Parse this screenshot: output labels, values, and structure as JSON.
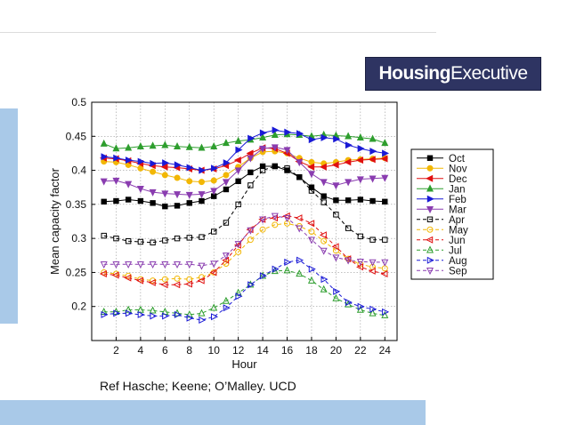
{
  "brand": {
    "logo_bold": "Housing",
    "logo_light": "Executive"
  },
  "caption": "Ref Hasche; Keene; O’Malley. UCD",
  "colors": {
    "accent_bar": "#a9c9e8",
    "logo_bg": "#2e3462"
  },
  "chart_data": {
    "type": "line",
    "title": "",
    "xlabel": "Hour",
    "ylabel": "Mean capacity factor",
    "xlim": [
      0,
      25
    ],
    "ylim": [
      0.15,
      0.5
    ],
    "xticks": [
      2,
      4,
      6,
      8,
      10,
      12,
      14,
      16,
      18,
      20,
      22,
      24
    ],
    "yticks": [
      0.2,
      0.25,
      0.3,
      0.35,
      0.4,
      0.45,
      0.5
    ],
    "ytick_labels": [
      "0.2",
      "0.25",
      "0.3",
      "0.35",
      "0.4",
      "0.45",
      "0.5"
    ],
    "grid": true,
    "legend_position": "right",
    "x": [
      1,
      2,
      3,
      4,
      5,
      6,
      7,
      8,
      9,
      10,
      11,
      12,
      13,
      14,
      15,
      16,
      17,
      18,
      19,
      20,
      21,
      22,
      23,
      24
    ],
    "series": [
      {
        "name": "Oct",
        "color": "#000000",
        "dash": false,
        "marker": "square",
        "filled": true,
        "values": [
          0.354,
          0.355,
          0.357,
          0.355,
          0.352,
          0.347,
          0.348,
          0.352,
          0.355,
          0.362,
          0.372,
          0.384,
          0.397,
          0.406,
          0.406,
          0.4,
          0.39,
          0.375,
          0.362,
          0.356,
          0.356,
          0.357,
          0.355,
          0.354
        ]
      },
      {
        "name": "Nov",
        "color": "#f2b705",
        "dash": false,
        "marker": "circle",
        "filled": true,
        "values": [
          0.413,
          0.412,
          0.408,
          0.403,
          0.398,
          0.393,
          0.389,
          0.384,
          0.383,
          0.385,
          0.393,
          0.405,
          0.418,
          0.427,
          0.428,
          0.425,
          0.418,
          0.412,
          0.41,
          0.412,
          0.415,
          0.416,
          0.417,
          0.418
        ]
      },
      {
        "name": "Dec",
        "color": "#e01010",
        "dash": false,
        "marker": "triangle-left",
        "filled": true,
        "values": [
          0.418,
          0.417,
          0.414,
          0.41,
          0.407,
          0.405,
          0.404,
          0.402,
          0.4,
          0.402,
          0.407,
          0.415,
          0.425,
          0.433,
          0.432,
          0.425,
          0.413,
          0.405,
          0.405,
          0.408,
          0.412,
          0.415,
          0.416,
          0.417
        ]
      },
      {
        "name": "Jan",
        "color": "#2e9e2e",
        "dash": false,
        "marker": "triangle-up",
        "filled": true,
        "values": [
          0.439,
          0.432,
          0.433,
          0.435,
          0.436,
          0.437,
          0.435,
          0.434,
          0.433,
          0.435,
          0.44,
          0.443,
          0.445,
          0.448,
          0.452,
          0.453,
          0.452,
          0.45,
          0.452,
          0.451,
          0.45,
          0.448,
          0.446,
          0.44
        ]
      },
      {
        "name": "Feb",
        "color": "#1a1ad6",
        "dash": false,
        "marker": "triangle-right",
        "filled": true,
        "values": [
          0.42,
          0.418,
          0.415,
          0.413,
          0.41,
          0.411,
          0.408,
          0.404,
          0.4,
          0.403,
          0.411,
          0.43,
          0.447,
          0.455,
          0.459,
          0.456,
          0.454,
          0.445,
          0.448,
          0.446,
          0.437,
          0.432,
          0.428,
          0.425
        ]
      },
      {
        "name": "Mar",
        "color": "#8a3db0",
        "dash": false,
        "marker": "triangle-down",
        "filled": true,
        "values": [
          0.384,
          0.385,
          0.38,
          0.373,
          0.368,
          0.366,
          0.365,
          0.364,
          0.365,
          0.37,
          0.383,
          0.4,
          0.418,
          0.432,
          0.434,
          0.43,
          0.412,
          0.395,
          0.383,
          0.378,
          0.383,
          0.387,
          0.388,
          0.389
        ]
      },
      {
        "name": "Apr",
        "color": "#000000",
        "dash": true,
        "marker": "square",
        "filled": false,
        "values": [
          0.304,
          0.3,
          0.296,
          0.295,
          0.294,
          0.297,
          0.3,
          0.301,
          0.302,
          0.31,
          0.323,
          0.35,
          0.378,
          0.4,
          0.406,
          0.403,
          0.39,
          0.37,
          0.353,
          0.335,
          0.315,
          0.303,
          0.298,
          0.298
        ]
      },
      {
        "name": "May",
        "color": "#f2b705",
        "dash": true,
        "marker": "circle",
        "filled": false,
        "values": [
          0.25,
          0.248,
          0.245,
          0.24,
          0.238,
          0.24,
          0.241,
          0.24,
          0.243,
          0.25,
          0.263,
          0.28,
          0.298,
          0.313,
          0.32,
          0.322,
          0.318,
          0.31,
          0.296,
          0.282,
          0.27,
          0.262,
          0.258,
          0.256
        ]
      },
      {
        "name": "Jun",
        "color": "#e01010",
        "dash": true,
        "marker": "triangle-left",
        "filled": false,
        "values": [
          0.248,
          0.246,
          0.242,
          0.238,
          0.235,
          0.232,
          0.232,
          0.233,
          0.238,
          0.25,
          0.268,
          0.29,
          0.313,
          0.328,
          0.33,
          0.333,
          0.33,
          0.322,
          0.305,
          0.288,
          0.27,
          0.258,
          0.252,
          0.248
        ]
      },
      {
        "name": "Jul",
        "color": "#2e9e2e",
        "dash": true,
        "marker": "triangle-up",
        "filled": false,
        "values": [
          0.192,
          0.192,
          0.195,
          0.195,
          0.194,
          0.192,
          0.19,
          0.188,
          0.19,
          0.198,
          0.208,
          0.22,
          0.232,
          0.245,
          0.252,
          0.253,
          0.248,
          0.238,
          0.225,
          0.212,
          0.203,
          0.195,
          0.19,
          0.187
        ]
      },
      {
        "name": "Aug",
        "color": "#1a1ad6",
        "dash": true,
        "marker": "triangle-right",
        "filled": false,
        "values": [
          0.188,
          0.19,
          0.19,
          0.188,
          0.186,
          0.186,
          0.188,
          0.183,
          0.18,
          0.185,
          0.198,
          0.215,
          0.232,
          0.245,
          0.255,
          0.265,
          0.268,
          0.255,
          0.24,
          0.222,
          0.206,
          0.2,
          0.196,
          0.192
        ]
      },
      {
        "name": "Sep",
        "color": "#8a3db0",
        "dash": true,
        "marker": "triangle-down",
        "filled": false,
        "values": [
          0.262,
          0.262,
          0.262,
          0.262,
          0.262,
          0.262,
          0.262,
          0.262,
          0.26,
          0.263,
          0.275,
          0.292,
          0.312,
          0.328,
          0.333,
          0.33,
          0.315,
          0.298,
          0.282,
          0.272,
          0.268,
          0.266,
          0.265,
          0.265
        ]
      }
    ]
  }
}
